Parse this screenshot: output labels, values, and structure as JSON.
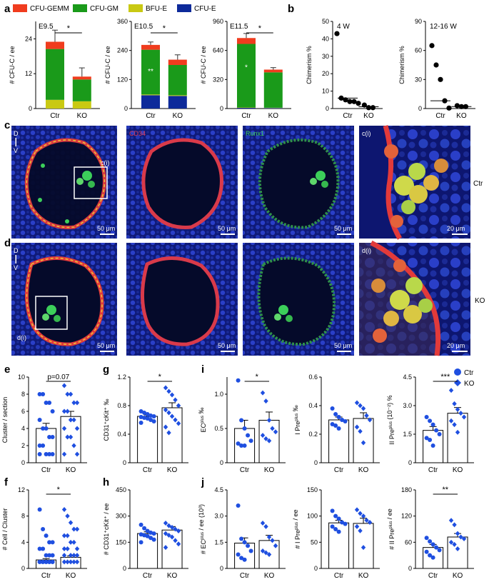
{
  "legend": [
    {
      "label": "CFU-GEMM",
      "color": "#f03c1e"
    },
    {
      "label": "CFU-GM",
      "color": "#1a9a1a"
    },
    {
      "label": "BFU-E",
      "color": "#c9c913"
    },
    {
      "label": "CFU-E",
      "color": "#0d2a9a"
    }
  ],
  "panel_letters": {
    "a": "a",
    "b": "b",
    "c": "c",
    "d": "d",
    "e": "e",
    "f": "f",
    "g": "g",
    "h": "h",
    "i": "i",
    "j": "j"
  },
  "groups": {
    "ctr": "Ctr",
    "ko": "KO"
  },
  "series_legend": {
    "ctr": "Ctr",
    "ko": "KO"
  },
  "colors": {
    "ctr": "#1f4fe0",
    "ko": "#1f4fe0"
  },
  "micro": {
    "orient_d": "D",
    "orient_v": "V",
    "cd34": "CD34",
    "runx1": "Runx1",
    "ci": "c(i)",
    "di": "d(i)",
    "scale50": "50 μm",
    "scale20": "20 μm",
    "row_ctr": "Ctr",
    "row_ko": "KO"
  },
  "chart_data": [
    {
      "id": "a1",
      "type": "bar",
      "title": "E9.5",
      "ylabel": "# CFU-C / ee",
      "ylim": [
        0,
        30
      ],
      "ticks": [
        "0",
        "12",
        "24"
      ],
      "tickvals": [
        0,
        12,
        24
      ],
      "categories": [
        "Ctr",
        "KO"
      ],
      "series": [
        {
          "name": "CFU-E",
          "values": [
            0,
            0
          ]
        },
        {
          "name": "BFU-E",
          "values": [
            3,
            2.5
          ]
        },
        {
          "name": "CFU-GM",
          "values": [
            17.5,
            7.5
          ]
        },
        {
          "name": "CFU-GEMM",
          "values": [
            2.5,
            1
          ]
        }
      ],
      "errors": [
        4,
        3
      ],
      "sig": "*"
    },
    {
      "id": "a2",
      "type": "bar",
      "title": "E10.5",
      "ylabel": "# CFU-C / ee",
      "ylim": [
        0,
        360
      ],
      "ticks": [
        "0",
        "120",
        "240",
        "360"
      ],
      "tickvals": [
        0,
        120,
        240,
        360
      ],
      "categories": [
        "Ctr",
        "KO"
      ],
      "series": [
        {
          "name": "CFU-E",
          "values": [
            55,
            52
          ]
        },
        {
          "name": "BFU-E",
          "values": [
            3,
            3
          ]
        },
        {
          "name": "CFU-GM",
          "values": [
            185,
            125
          ]
        },
        {
          "name": "CFU-GEMM",
          "values": [
            20,
            22
          ]
        }
      ],
      "errors": [
        12,
        20
      ],
      "sig": "*",
      "inner": [
        "**",
        ""
      ]
    },
    {
      "id": "a3",
      "type": "bar",
      "title": "E11.5",
      "ylabel": "# CFU-C / ee",
      "ylim": [
        0,
        960
      ],
      "ticks": [
        "0",
        "320",
        "640",
        "960"
      ],
      "tickvals": [
        0,
        320,
        640,
        960
      ],
      "categories": [
        "Ctr",
        "KO"
      ],
      "series": [
        {
          "name": "CFU-E",
          "values": [
            8,
            6
          ]
        },
        {
          "name": "BFU-E",
          "values": [
            4,
            3
          ]
        },
        {
          "name": "CFU-GM",
          "values": [
            700,
            390
          ]
        },
        {
          "name": "CFU-GEMM",
          "values": [
            65,
            30
          ]
        }
      ],
      "errors": [
        50,
        22
      ],
      "sig": "*",
      "inner": [
        "*",
        ""
      ]
    },
    {
      "id": "b1",
      "type": "scatter",
      "title": "4 W",
      "ylabel": "Chimerism %",
      "ylim": [
        0,
        50
      ],
      "ticks": [
        "0",
        "10",
        "20",
        "30",
        "40",
        "50"
      ],
      "tickvals": [
        0,
        10,
        20,
        30,
        40,
        50
      ],
      "categories": [
        "Ctr",
        "KO"
      ],
      "points": [
        [
          43,
          6,
          5,
          4,
          4,
          3
        ],
        [
          2,
          0.5,
          0.5
        ]
      ],
      "means": [
        6,
        1
      ]
    },
    {
      "id": "b2",
      "type": "scatter",
      "title": "12-16 W",
      "ylabel": "Chimerism %",
      "ylim": [
        0,
        90
      ],
      "ticks": [
        "0",
        "30",
        "60",
        "90"
      ],
      "tickvals": [
        0,
        30,
        60,
        90
      ],
      "categories": [
        "Ctr",
        "KO"
      ],
      "points": [
        [
          65,
          45,
          30,
          8,
          0.5
        ],
        [
          3,
          2,
          2
        ]
      ],
      "means": [
        8,
        2
      ]
    },
    {
      "id": "e",
      "type": "bar",
      "ylabel": "Cluster / section",
      "ylim": [
        0,
        10
      ],
      "ticks": [
        "0",
        "2",
        "4",
        "6",
        "8",
        "10"
      ],
      "tickvals": [
        0,
        2,
        4,
        6,
        8,
        10
      ],
      "categories": [
        "Ctr",
        "KO"
      ],
      "means": [
        4,
        5.4
      ],
      "sem": [
        0.6,
        0.6
      ],
      "points": [
        [
          8,
          8,
          7,
          7,
          6,
          5,
          4,
          4,
          3,
          3,
          2,
          2,
          1,
          1,
          1,
          1
        ],
        [
          9,
          8,
          8,
          7,
          7,
          6,
          6,
          5,
          5,
          4,
          4,
          3,
          3,
          2,
          1,
          1
        ]
      ],
      "sig": "p=0.07"
    },
    {
      "id": "f",
      "type": "bar",
      "ylabel": "# Cell / Cluster",
      "ylim": [
        0,
        12
      ],
      "ticks": [
        "0",
        "4",
        "8",
        "12"
      ],
      "tickvals": [
        0,
        4,
        8,
        12
      ],
      "categories": [
        "Ctr",
        "KO"
      ],
      "means": [
        1.3,
        1.7
      ],
      "sem": [
        0.2,
        0.2
      ],
      "points": [
        [
          9,
          6,
          5,
          4,
          4,
          3,
          3,
          2,
          2,
          2,
          1,
          1,
          1,
          1,
          1,
          1,
          1,
          1,
          1,
          1
        ],
        [
          9,
          8,
          7,
          6,
          6,
          5,
          5,
          4,
          4,
          3,
          3,
          3,
          2,
          2,
          2,
          2,
          1,
          1,
          1,
          1,
          1
        ]
      ],
      "sig": "*"
    },
    {
      "id": "g",
      "type": "bar",
      "ylabel": "CD31⁺cKit⁺ ‰",
      "ylim": [
        0,
        1.2
      ],
      "ticks": [
        "0",
        "0.4",
        "0.8",
        "1.2"
      ],
      "tickvals": [
        0,
        0.4,
        0.8,
        1.2
      ],
      "categories": [
        "Ctr",
        "KO"
      ],
      "means": [
        0.65,
        0.77
      ],
      "sem": [
        0.02,
        0.07
      ],
      "points": [
        [
          0.72,
          0.7,
          0.68,
          0.66,
          0.65,
          0.64,
          0.63,
          0.62,
          0.6,
          0.58,
          0.56
        ],
        [
          1.05,
          1.0,
          0.95,
          0.88,
          0.8,
          0.74,
          0.7,
          0.65,
          0.6,
          0.55,
          0.5,
          0.42
        ]
      ],
      "sig": "*"
    },
    {
      "id": "h",
      "type": "bar",
      "ylabel": "# CD31⁺cKit⁺ / ee",
      "ylim": [
        0,
        450
      ],
      "ticks": [
        "0",
        "150",
        "300",
        "450"
      ],
      "tickvals": [
        0,
        150,
        300,
        450
      ],
      "categories": [
        "Ctr",
        "KO"
      ],
      "means": [
        200,
        220
      ],
      "sem": [
        10,
        20
      ],
      "points": [
        [
          250,
          230,
          215,
          205,
          200,
          195,
          190,
          185,
          175,
          165,
          150
        ],
        [
          260,
          245,
          235,
          225,
          215,
          200,
          190,
          180,
          160,
          140,
          120
        ]
      ]
    },
    {
      "id": "i1",
      "type": "bar",
      "ylabel": "EC^plus ‰",
      "ylim": [
        0,
        1.25
      ],
      "ticks": [
        "0",
        "0.5",
        "1.0"
      ],
      "tickvals": [
        0,
        0.5,
        1.0
      ],
      "categories": [
        "Ctr",
        "KO"
      ],
      "means": [
        0.5,
        0.62
      ],
      "sem": [
        0.12,
        0.12
      ],
      "points": [
        [
          1.2,
          0.62,
          0.5,
          0.4,
          0.32,
          0.28,
          0.25,
          0.25
        ],
        [
          1.02,
          0.9,
          0.62,
          0.5,
          0.45,
          0.4,
          0.35,
          0.32
        ]
      ],
      "sig": "*"
    },
    {
      "id": "i2",
      "type": "bar",
      "ylabel": "I Pre^plus ‰",
      "ylim": [
        0,
        0.6
      ],
      "ticks": [
        "0",
        "0.2",
        "0.4",
        "0.6"
      ],
      "tickvals": [
        0,
        0.2,
        0.4,
        0.6
      ],
      "categories": [
        "Ctr",
        "KO"
      ],
      "means": [
        0.3,
        0.31
      ],
      "sem": [
        0.02,
        0.04
      ],
      "points": [
        [
          0.38,
          0.34,
          0.32,
          0.3,
          0.29,
          0.27,
          0.26,
          0.24
        ],
        [
          0.42,
          0.4,
          0.38,
          0.33,
          0.3,
          0.25,
          0.22,
          0.14
        ]
      ]
    },
    {
      "id": "i3",
      "type": "bar",
      "ylabel": "II Pre^plus (10⁻²) %",
      "ylim": [
        0,
        4.5
      ],
      "ticks": [
        "0",
        "1.5",
        "3.0",
        "4.5"
      ],
      "tickvals": [
        0,
        1.5,
        3.0,
        4.5
      ],
      "categories": [
        "Ctr",
        "KO"
      ],
      "means": [
        1.7,
        2.6
      ],
      "sem": [
        0.2,
        0.3
      ],
      "points": [
        [
          2.4,
          2.2,
          2.0,
          1.7,
          1.5,
          1.3,
          1.2,
          0.9
        ],
        [
          3.8,
          3.1,
          2.8,
          2.6,
          2.4,
          2.2,
          2.0,
          1.6
        ]
      ],
      "sig": "***"
    },
    {
      "id": "j1",
      "type": "bar",
      "ylabel": "# EC^plus / ee (10³)",
      "ylim": [
        0,
        4.5
      ],
      "ticks": [
        "0",
        "1.5",
        "3.0",
        "4.5"
      ],
      "tickvals": [
        0,
        1.5,
        3.0,
        4.5
      ],
      "categories": [
        "Ctr",
        "KO"
      ],
      "means": [
        1.45,
        1.6
      ],
      "sem": [
        0.3,
        0.3
      ],
      "points": [
        [
          3.6,
          1.7,
          1.5,
          1.3,
          1.0,
          0.8,
          0.6,
          0.5
        ],
        [
          2.6,
          2.4,
          1.8,
          1.6,
          1.3,
          1.0,
          0.9,
          0.8
        ]
      ]
    },
    {
      "id": "j2",
      "type": "bar",
      "ylabel": "# I Pre^plus / ee",
      "ylim": [
        0,
        150
      ],
      "ticks": [
        "0",
        "50",
        "100",
        "150"
      ],
      "tickvals": [
        0,
        50,
        100,
        150
      ],
      "categories": [
        "Ctr",
        "KO"
      ],
      "means": [
        87,
        86
      ],
      "sem": [
        5,
        10
      ],
      "points": [
        [
          110,
          100,
          95,
          88,
          85,
          80,
          75,
          70
        ],
        [
          112,
          105,
          100,
          92,
          88,
          80,
          72,
          40
        ]
      ]
    },
    {
      "id": "j3",
      "type": "bar",
      "ylabel": "# II Pre^plus / ee",
      "ylim": [
        0,
        180
      ],
      "ticks": [
        "0",
        "60",
        "120",
        "180"
      ],
      "tickvals": [
        0,
        60,
        120,
        180
      ],
      "categories": [
        "Ctr",
        "KO"
      ],
      "means": [
        48,
        72
      ],
      "sem": [
        7,
        8
      ],
      "points": [
        [
          70,
          62,
          55,
          48,
          42,
          38,
          30,
          25
        ],
        [
          110,
          100,
          80,
          72,
          68,
          60,
          55,
          45
        ]
      ],
      "sig": "**"
    }
  ]
}
